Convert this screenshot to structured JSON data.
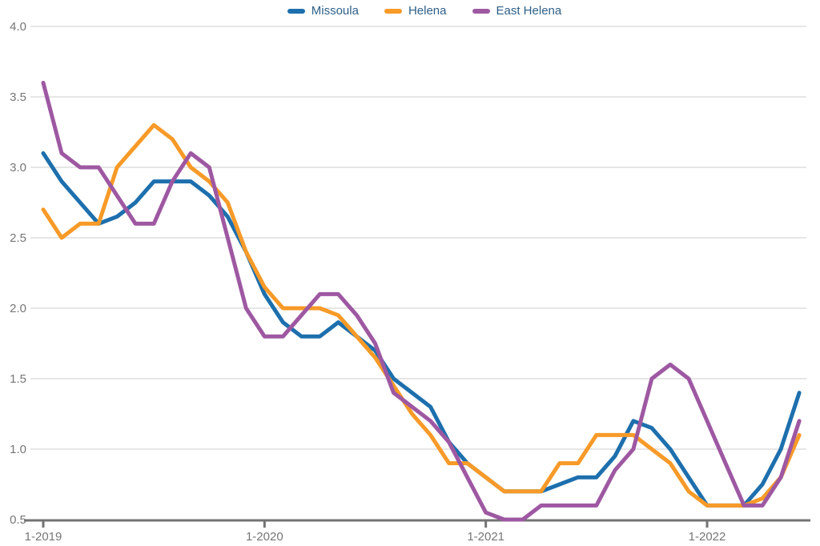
{
  "axes": {
    "text_color": "#767676",
    "gridline_color": "#cccccc",
    "axis_line_color": "#737373",
    "legend_text_color": "#2e6089"
  },
  "chart_data": {
    "type": "line",
    "title": "",
    "xlabel": "",
    "ylabel": "",
    "ylim": [
      0.5,
      4.0
    ],
    "y_tick_step": 0.5,
    "y_ticks": [
      4.0,
      3.5,
      3.0,
      2.5,
      2.0,
      1.5,
      1.0,
      0.5
    ],
    "x_tick_labels": [
      "1-2019",
      "1-2020",
      "1-2021",
      "1-2022"
    ],
    "x_tick_positions": [
      0,
      12,
      24,
      36
    ],
    "grid": "horizontal",
    "legend_position": "top-center",
    "categories": [
      "1-2019",
      "2-2019",
      "3-2019",
      "4-2019",
      "5-2019",
      "6-2019",
      "7-2019",
      "8-2019",
      "9-2019",
      "10-2019",
      "11-2019",
      "12-2019",
      "1-2020",
      "2-2020",
      "3-2020",
      "4-2020",
      "5-2020",
      "6-2020",
      "7-2020",
      "8-2020",
      "9-2020",
      "10-2020",
      "11-2020",
      "12-2020",
      "1-2021",
      "2-2021",
      "3-2021",
      "4-2021",
      "5-2021",
      "6-2021",
      "7-2021",
      "8-2021",
      "9-2021",
      "10-2021",
      "11-2021",
      "12-2021",
      "1-2022",
      "2-2022",
      "3-2022",
      "4-2022",
      "5-2022",
      "6-2022"
    ],
    "series": [
      {
        "name": "Missoula",
        "color": "#1d6fad",
        "values": [
          3.1,
          2.9,
          2.75,
          2.6,
          2.65,
          2.75,
          2.9,
          2.9,
          2.9,
          2.8,
          2.65,
          2.4,
          2.1,
          1.9,
          1.8,
          1.8,
          1.9,
          1.8,
          1.7,
          1.5,
          1.4,
          1.3,
          1.05,
          0.9,
          0.8,
          0.7,
          0.7,
          0.7,
          0.75,
          0.8,
          0.8,
          0.95,
          1.2,
          1.15,
          1.0,
          0.8,
          0.6,
          0.6,
          0.6,
          0.75,
          1.0,
          1.4
        ]
      },
      {
        "name": "Helena",
        "color": "#f79a28",
        "values": [
          2.7,
          2.5,
          2.6,
          2.6,
          3.0,
          3.15,
          3.3,
          3.2,
          3.0,
          2.9,
          2.75,
          2.4,
          2.15,
          2.0,
          2.0,
          2.0,
          1.95,
          1.8,
          1.65,
          1.45,
          1.25,
          1.1,
          0.9,
          0.9,
          0.8,
          0.7,
          0.7,
          0.7,
          0.9,
          0.9,
          1.1,
          1.1,
          1.1,
          1.0,
          0.9,
          0.7,
          0.6,
          0.6,
          0.6,
          0.65,
          0.8,
          1.1
        ]
      },
      {
        "name": "East Helena",
        "color": "#9e58a2",
        "values": [
          3.6,
          3.1,
          3.0,
          3.0,
          2.8,
          2.6,
          2.6,
          2.9,
          3.1,
          3.0,
          2.5,
          2.0,
          1.8,
          1.8,
          1.95,
          2.1,
          2.1,
          1.95,
          1.75,
          1.4,
          1.3,
          1.2,
          1.05,
          0.8,
          0.55,
          0.5,
          0.5,
          0.6,
          0.6,
          0.6,
          0.6,
          0.85,
          1.0,
          1.5,
          1.6,
          1.5,
          1.2,
          0.9,
          0.6,
          0.6,
          0.8,
          1.2
        ]
      }
    ]
  }
}
